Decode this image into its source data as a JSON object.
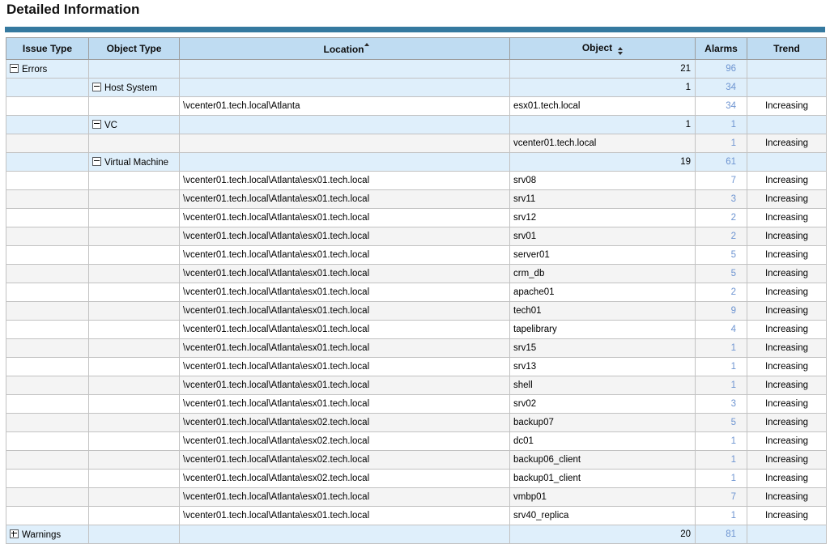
{
  "page": {
    "title": "Detailed Information"
  },
  "colors": {
    "accent": "#35799F",
    "header-bg": "#BFDCF2",
    "group-bg": "#DFEFFB",
    "alt-bg": "#F4F4F4",
    "link-blue": "#6D94D1"
  },
  "table": {
    "columns": [
      {
        "label": "Issue Type",
        "sort": "none"
      },
      {
        "label": "Object Type",
        "sort": "none"
      },
      {
        "label": "Location",
        "sort": "asc"
      },
      {
        "label": "Object",
        "sort": "both"
      },
      {
        "label": "Alarms",
        "sort": "none"
      },
      {
        "label": "Trend",
        "sort": "none"
      }
    ],
    "rows": [
      {
        "kind": "group",
        "level": 0,
        "icon": "minus",
        "label": "Errors",
        "count": "21",
        "alarms": "96",
        "trend": ""
      },
      {
        "kind": "group",
        "level": 1,
        "icon": "minus",
        "label": "Host System",
        "count": "1",
        "alarms": "34",
        "trend": ""
      },
      {
        "kind": "data",
        "shade": "white",
        "location": "\\vcenter01.tech.local\\Atlanta",
        "object": "esx01.tech.local",
        "alarms": "34",
        "trend": "Increasing"
      },
      {
        "kind": "group",
        "level": 1,
        "icon": "minus",
        "label": "VC",
        "count": "1",
        "alarms": "1",
        "trend": ""
      },
      {
        "kind": "data",
        "shade": "gray",
        "location": "",
        "object": "vcenter01.tech.local",
        "alarms": "1",
        "trend": "Increasing"
      },
      {
        "kind": "group",
        "level": 1,
        "icon": "minus",
        "label": "Virtual Machine",
        "count": "19",
        "alarms": "61",
        "trend": ""
      },
      {
        "kind": "data",
        "shade": "white",
        "location": "\\vcenter01.tech.local\\Atlanta\\esx01.tech.local",
        "object": "srv08",
        "alarms": "7",
        "trend": "Increasing"
      },
      {
        "kind": "data",
        "shade": "gray",
        "location": "\\vcenter01.tech.local\\Atlanta\\esx01.tech.local",
        "object": "srv11",
        "alarms": "3",
        "trend": "Increasing"
      },
      {
        "kind": "data",
        "shade": "white",
        "location": "\\vcenter01.tech.local\\Atlanta\\esx01.tech.local",
        "object": "srv12",
        "alarms": "2",
        "trend": "Increasing"
      },
      {
        "kind": "data",
        "shade": "gray",
        "location": "\\vcenter01.tech.local\\Atlanta\\esx01.tech.local",
        "object": "srv01",
        "alarms": "2",
        "trend": "Increasing"
      },
      {
        "kind": "data",
        "shade": "white",
        "location": "\\vcenter01.tech.local\\Atlanta\\esx01.tech.local",
        "object": "server01",
        "alarms": "5",
        "trend": "Increasing"
      },
      {
        "kind": "data",
        "shade": "gray",
        "location": "\\vcenter01.tech.local\\Atlanta\\esx01.tech.local",
        "object": "crm_db",
        "alarms": "5",
        "trend": "Increasing"
      },
      {
        "kind": "data",
        "shade": "white",
        "location": "\\vcenter01.tech.local\\Atlanta\\esx01.tech.local",
        "object": "apache01",
        "alarms": "2",
        "trend": "Increasing"
      },
      {
        "kind": "data",
        "shade": "gray",
        "location": "\\vcenter01.tech.local\\Atlanta\\esx01.tech.local",
        "object": "tech01",
        "alarms": "9",
        "trend": "Increasing"
      },
      {
        "kind": "data",
        "shade": "white",
        "location": "\\vcenter01.tech.local\\Atlanta\\esx01.tech.local",
        "object": "tapelibrary",
        "alarms": "4",
        "trend": "Increasing"
      },
      {
        "kind": "data",
        "shade": "gray",
        "location": "\\vcenter01.tech.local\\Atlanta\\esx01.tech.local",
        "object": "srv15",
        "alarms": "1",
        "trend": "Increasing"
      },
      {
        "kind": "data",
        "shade": "white",
        "location": "\\vcenter01.tech.local\\Atlanta\\esx01.tech.local",
        "object": "srv13",
        "alarms": "1",
        "trend": "Increasing"
      },
      {
        "kind": "data",
        "shade": "gray",
        "location": "\\vcenter01.tech.local\\Atlanta\\esx01.tech.local",
        "object": "shell",
        "alarms": "1",
        "trend": "Increasing"
      },
      {
        "kind": "data",
        "shade": "white",
        "location": "\\vcenter01.tech.local\\Atlanta\\esx01.tech.local",
        "object": "srv02",
        "alarms": "3",
        "trend": "Increasing"
      },
      {
        "kind": "data",
        "shade": "gray",
        "location": "\\vcenter01.tech.local\\Atlanta\\esx02.tech.local",
        "object": "backup07",
        "alarms": "5",
        "trend": "Increasing"
      },
      {
        "kind": "data",
        "shade": "white",
        "location": "\\vcenter01.tech.local\\Atlanta\\esx02.tech.local",
        "object": "dc01",
        "alarms": "1",
        "trend": "Increasing"
      },
      {
        "kind": "data",
        "shade": "gray",
        "location": "\\vcenter01.tech.local\\Atlanta\\esx02.tech.local",
        "object": "backup06_client",
        "alarms": "1",
        "trend": "Increasing"
      },
      {
        "kind": "data",
        "shade": "white",
        "location": "\\vcenter01.tech.local\\Atlanta\\esx02.tech.local",
        "object": "backup01_client",
        "alarms": "1",
        "trend": "Increasing"
      },
      {
        "kind": "data",
        "shade": "gray",
        "location": "\\vcenter01.tech.local\\Atlanta\\esx01.tech.local",
        "object": "vmbp01",
        "alarms": "7",
        "trend": "Increasing"
      },
      {
        "kind": "data",
        "shade": "white",
        "location": "\\vcenter01.tech.local\\Atlanta\\esx01.tech.local",
        "object": "srv40_replica",
        "alarms": "1",
        "trend": "Increasing"
      },
      {
        "kind": "group",
        "level": 0,
        "icon": "plus",
        "label": "Warnings",
        "count": "20",
        "alarms": "81",
        "trend": ""
      }
    ]
  }
}
